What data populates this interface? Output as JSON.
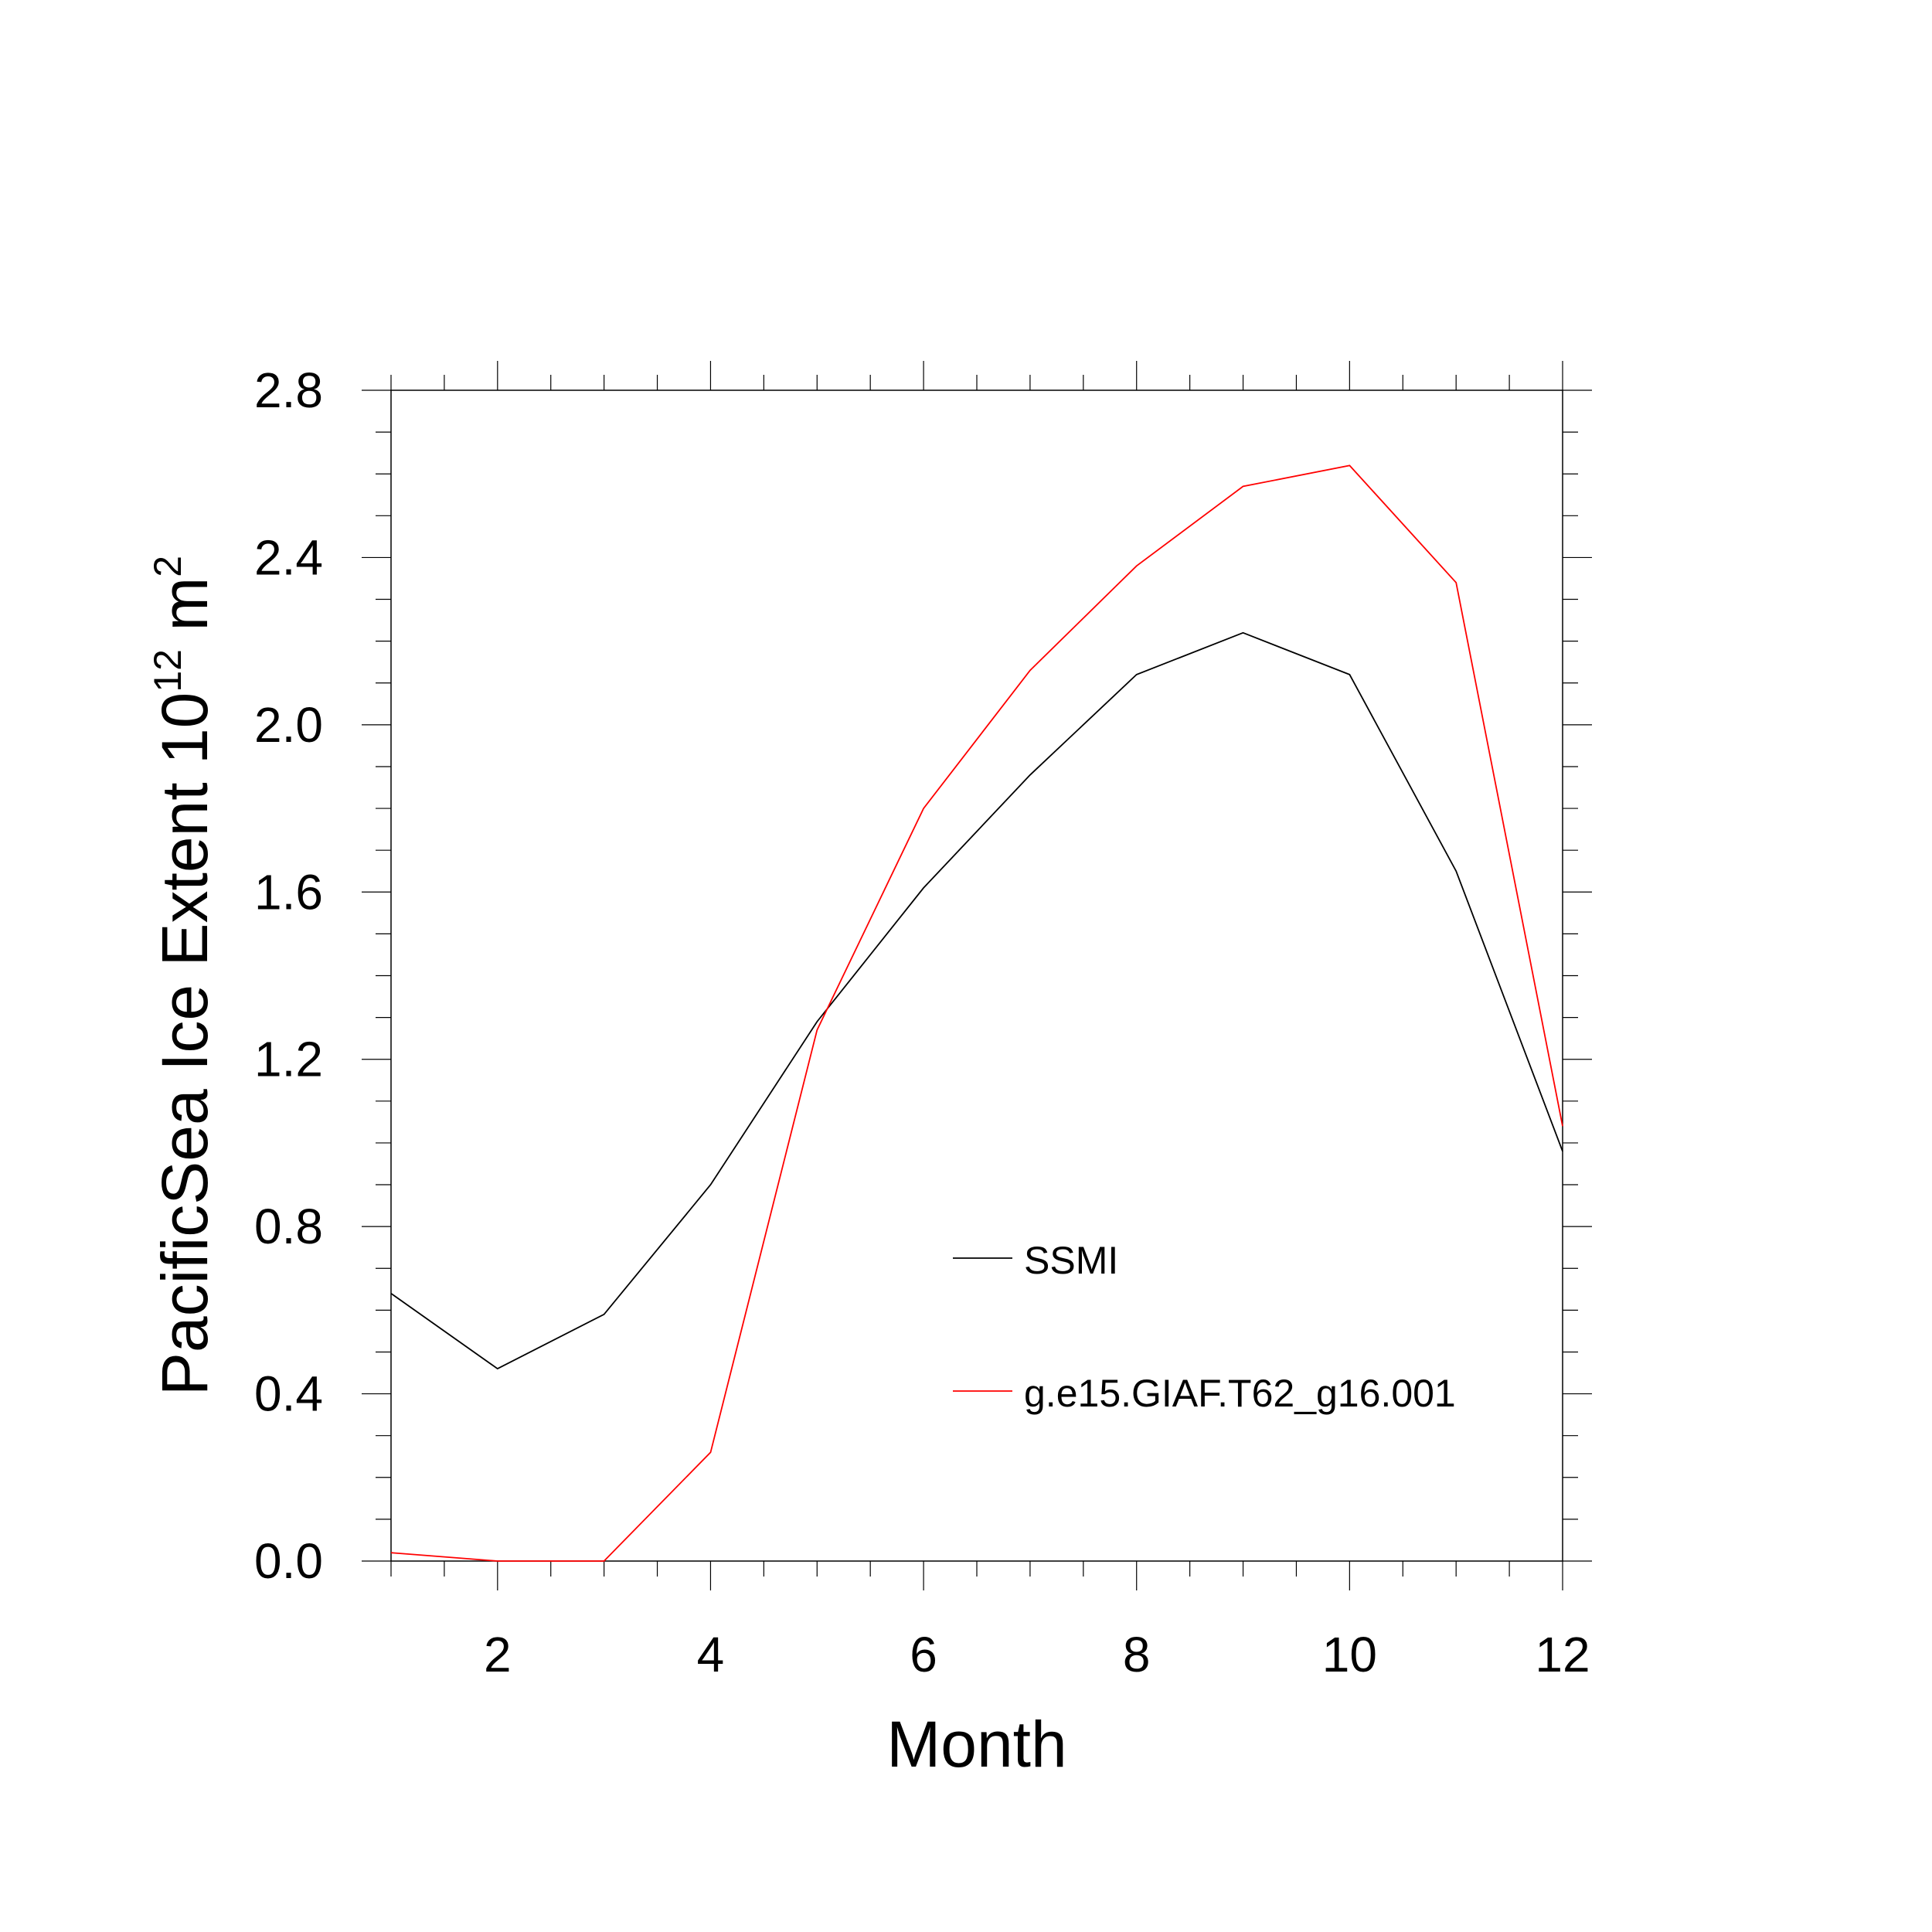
{
  "chart_data": {
    "type": "line",
    "xlabel": "Month",
    "ylabel": {
      "main": "PacificSea Ice Extent 10",
      "exponent": "12",
      "unit": " m",
      "unit_exponent": "2"
    },
    "xlim": [
      1,
      12
    ],
    "ylim": [
      0.0,
      2.8
    ],
    "x_ticks": [
      "2",
      "4",
      "6",
      "8",
      "10",
      "12"
    ],
    "y_ticks": [
      "0.0",
      "0.4",
      "0.8",
      "1.2",
      "1.6",
      "2.0",
      "2.4",
      "2.8"
    ],
    "grid": false,
    "legend_position": "lower-right-inside",
    "x": [
      1,
      2,
      3,
      4,
      5,
      6,
      7,
      8,
      9,
      10,
      11,
      12
    ],
    "series": [
      {
        "name": "SSMI",
        "color": "#000000",
        "values": [
          0.64,
          0.46,
          0.59,
          0.9,
          1.29,
          1.61,
          1.88,
          2.12,
          2.22,
          2.12,
          1.65,
          0.98
        ]
      },
      {
        "name": "g.e15.GIAF.T62_g16.001",
        "color": "#ff0000",
        "values": [
          0.02,
          0.0,
          0.0,
          0.26,
          1.27,
          1.8,
          2.13,
          2.38,
          2.57,
          2.62,
          2.34,
          1.04
        ]
      }
    ]
  }
}
